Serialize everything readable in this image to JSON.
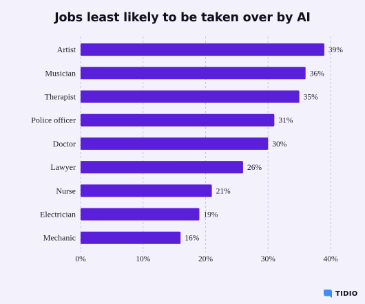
{
  "chart_data": {
    "type": "bar",
    "orientation": "horizontal",
    "title": "Jobs least likely to be taken over by AI",
    "categories": [
      "Artist",
      "Musician",
      "Therapist",
      "Police officer",
      "Doctor",
      "Lawyer",
      "Nurse",
      "Electrician",
      "Mechanic"
    ],
    "values": [
      39,
      36,
      35,
      31,
      30,
      26,
      21,
      19,
      16
    ],
    "value_labels": [
      "39%",
      "36%",
      "35%",
      "31%",
      "30%",
      "26%",
      "21%",
      "19%",
      "16%"
    ],
    "xlabel": "",
    "ylabel": "",
    "xlim": [
      0,
      40
    ],
    "xticks": [
      0,
      10,
      20,
      30,
      40
    ],
    "xtick_labels": [
      "0%",
      "10%",
      "20%",
      "30%",
      "40%"
    ],
    "grid": "vertical dashed",
    "legend": "none",
    "bar_color": "#5a1fd8"
  },
  "brand": {
    "name": "TIDIO",
    "icon": "tidio-logo-icon",
    "icon_color": "#3c8df5"
  }
}
